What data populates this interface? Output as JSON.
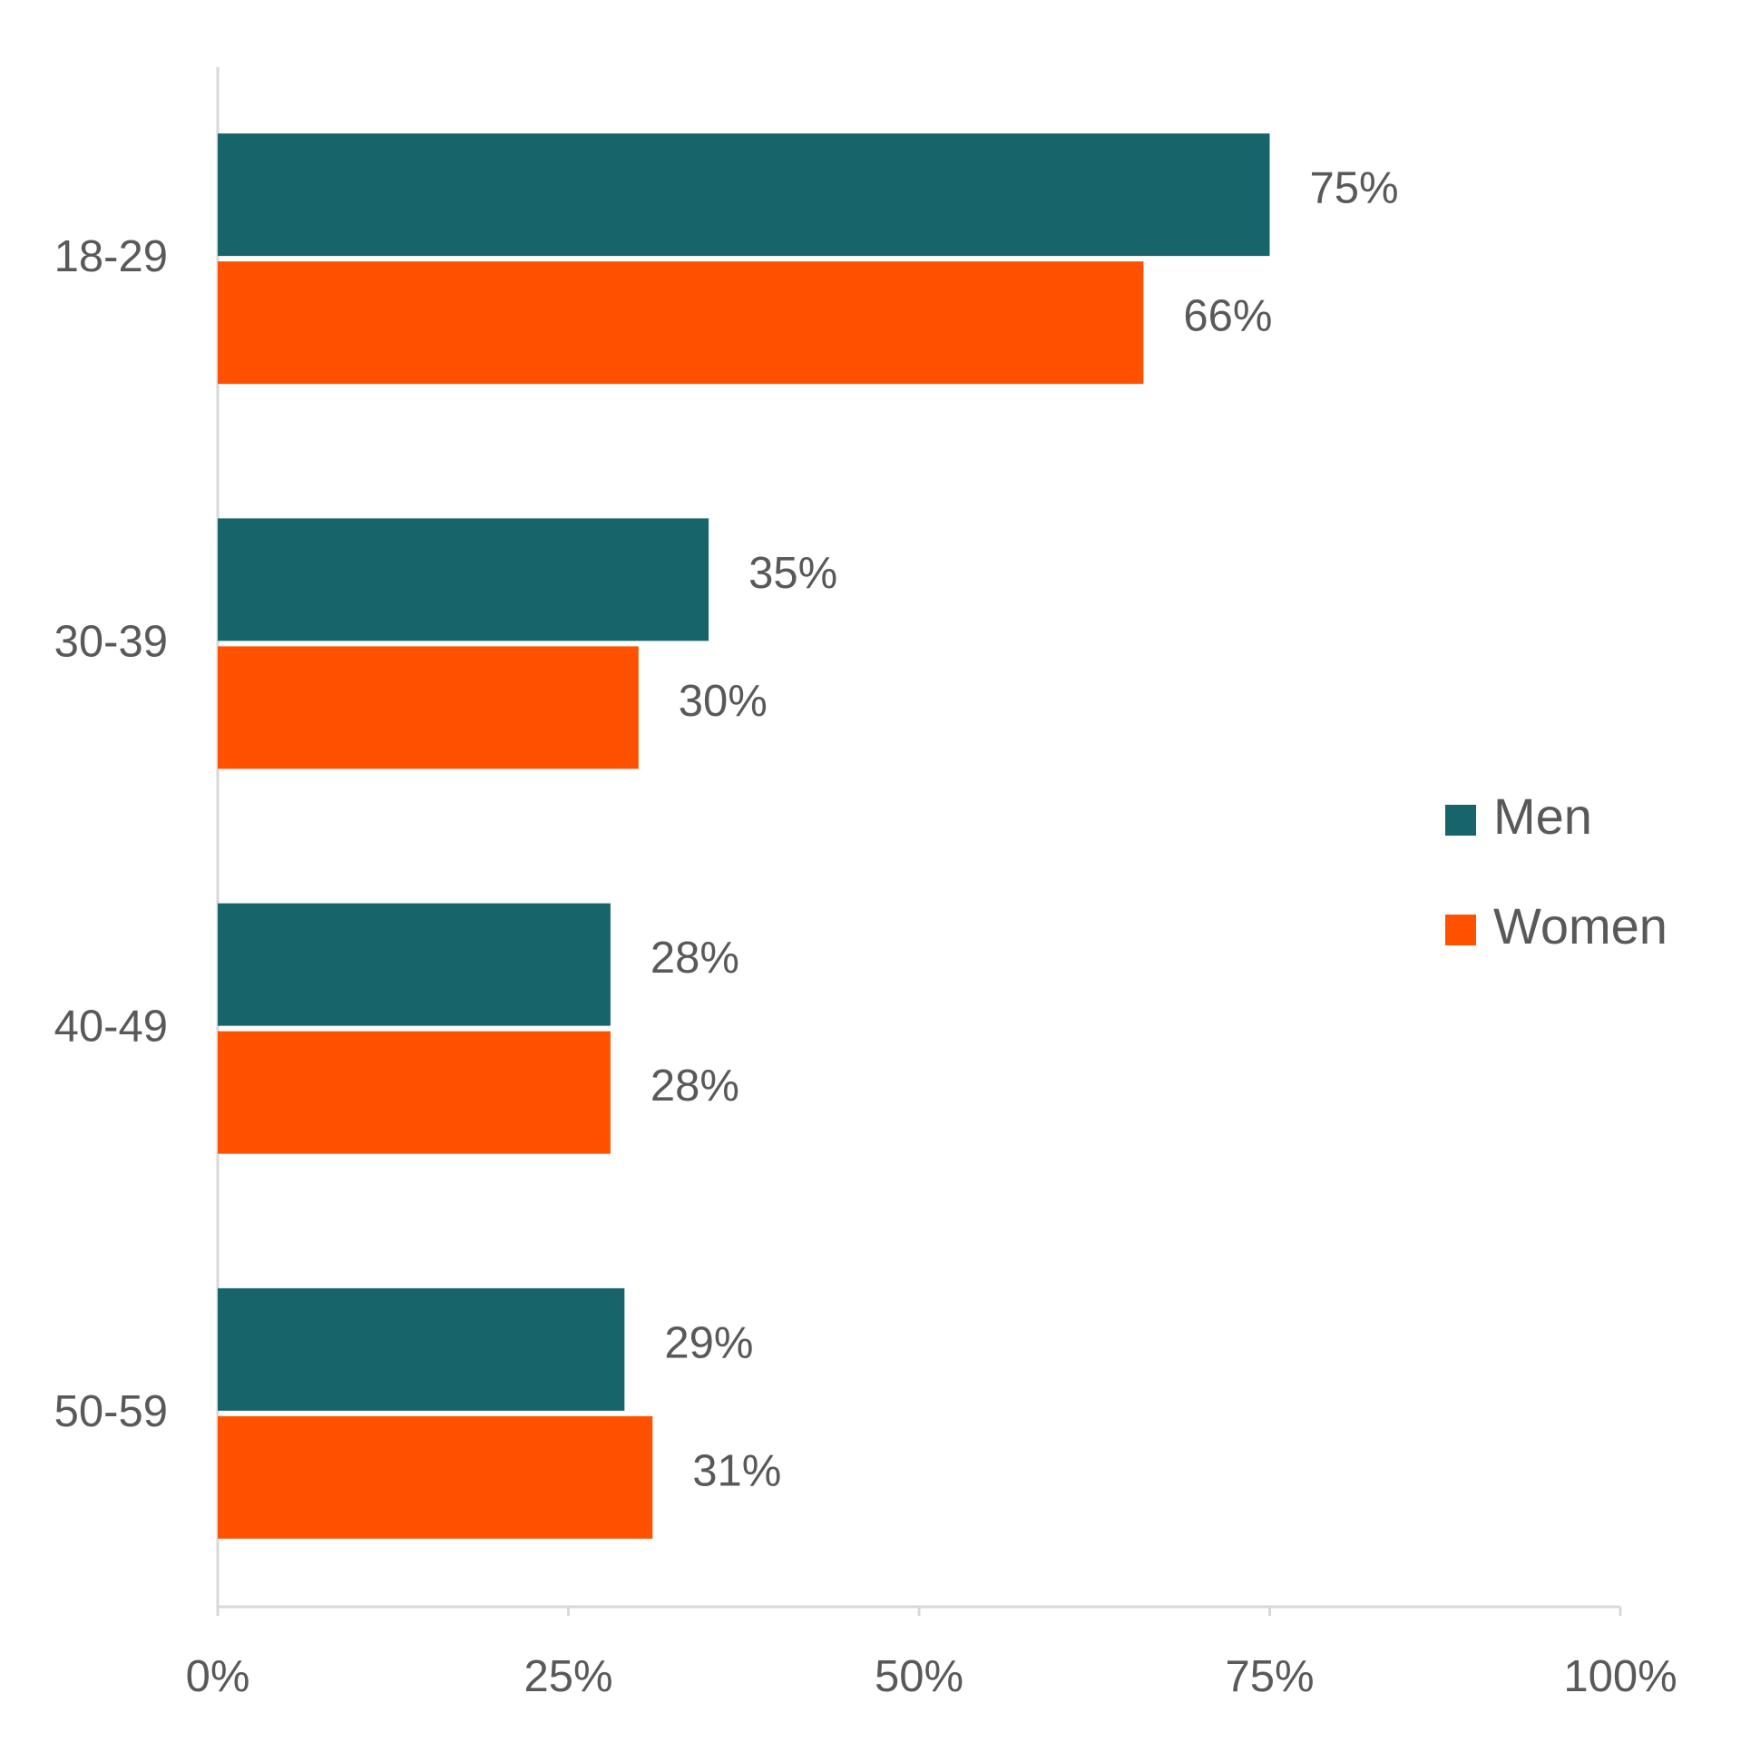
{
  "chart_data": {
    "type": "hbar",
    "categories": [
      "18-29",
      "30-39",
      "40-49",
      "50-59"
    ],
    "series": [
      {
        "name": "Men",
        "color": "#17646b",
        "values": [
          75,
          35,
          28,
          29
        ],
        "value_labels": [
          "75%",
          "35%",
          "28%",
          "29%"
        ]
      },
      {
        "name": "Women",
        "color": "#ff5100",
        "values": [
          66,
          30,
          28,
          31
        ],
        "value_labels": [
          "66%",
          "30%",
          "28%",
          "31%"
        ]
      }
    ],
    "xlim": [
      0,
      100
    ],
    "xticks": [
      {
        "value": 0,
        "label": "0%"
      },
      {
        "value": 25,
        "label": "25%"
      },
      {
        "value": 50,
        "label": "50%"
      },
      {
        "value": 75,
        "label": "75%"
      },
      {
        "value": 100,
        "label": "100%"
      }
    ],
    "legend": "right"
  }
}
